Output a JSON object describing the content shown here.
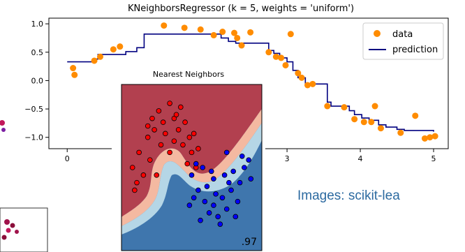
{
  "caption": "Images: scikit-lea",
  "chart_data": [
    {
      "type": "scatter+line",
      "title": "KNeighborsRegressor (k = 5, weights = 'uniform')",
      "xlim": [
        -0.25,
        5.2
      ],
      "ylim": [
        -1.2,
        1.1
      ],
      "xticks": [
        "0",
        "1",
        "2",
        "3",
        "4",
        "5"
      ],
      "yticks": [
        "1.0",
        "0.5",
        "0.0",
        "−0.5",
        "−1.0"
      ],
      "ytick_values": [
        1.0,
        0.5,
        0.0,
        -0.5,
        -1.0
      ],
      "legend": {
        "position": "upper right",
        "entries": [
          "data",
          "prediction"
        ]
      },
      "colors": {
        "data": "#ff8c00",
        "prediction": "#000080"
      },
      "series": [
        {
          "name": "data",
          "kind": "scatter",
          "x": [
            0.08,
            0.1,
            0.37,
            0.45,
            0.63,
            0.72,
            1.32,
            1.6,
            1.82,
            2.0,
            2.12,
            2.28,
            2.32,
            2.38,
            2.5,
            2.75,
            2.85,
            2.92,
            2.98,
            3.05,
            3.15,
            3.2,
            3.28,
            3.35,
            3.55,
            3.78,
            3.92,
            4.05,
            4.15,
            4.2,
            4.28,
            4.55,
            4.75,
            4.88,
            4.95,
            5.02
          ],
          "y": [
            0.22,
            0.1,
            0.35,
            0.42,
            0.55,
            0.6,
            0.97,
            0.93,
            0.9,
            0.8,
            0.86,
            0.84,
            0.75,
            0.62,
            0.85,
            0.5,
            0.42,
            0.4,
            0.27,
            0.82,
            0.13,
            0.05,
            -0.08,
            -0.06,
            -0.45,
            -0.47,
            -0.68,
            -0.73,
            -0.73,
            -0.45,
            -0.84,
            -0.92,
            -0.62,
            -1.02,
            -1.0,
            -0.98
          ]
        },
        {
          "name": "prediction",
          "kind": "step",
          "x": [
            0.0,
            0.35,
            0.42,
            0.8,
            0.95,
            1.05,
            1.55,
            1.85,
            2.1,
            2.2,
            2.3,
            2.75,
            2.82,
            2.9,
            3.0,
            3.08,
            3.15,
            3.25,
            3.55,
            3.6,
            3.85,
            3.92,
            4.02,
            4.12,
            4.25,
            4.35,
            4.5,
            4.6,
            5.0
          ],
          "y": [
            0.33,
            0.38,
            0.46,
            0.51,
            0.58,
            0.82,
            0.82,
            0.82,
            0.75,
            0.69,
            0.66,
            0.53,
            0.48,
            0.4,
            0.33,
            0.18,
            0.05,
            -0.06,
            -0.38,
            -0.45,
            -0.53,
            -0.6,
            -0.66,
            -0.7,
            -0.78,
            -0.82,
            -0.86,
            -0.88,
            -0.9
          ]
        }
      ]
    },
    {
      "type": "scatter",
      "title": "Nearest Neighbors",
      "score_label": ".97",
      "colors": {
        "class_a": "#ff0000",
        "class_b": "#0000ff",
        "region_a": "#b2404f",
        "region_b": "#3f76ad",
        "margin_a": "#f4b9a1",
        "margin_b": "#b5d6e6"
      },
      "series": [
        {
          "name": "class_a",
          "x": [
            -0.95,
            -0.8,
            -0.9,
            -0.6,
            -0.5,
            -0.45,
            -0.35,
            -0.25,
            -0.1,
            0.0,
            0.05,
            0.15,
            -0.3,
            -0.7,
            -0.55,
            -0.2,
            0.1,
            0.25,
            0.35,
            0.4,
            -0.1,
            0.2,
            -0.6,
            0.5,
            0.45,
            -0.85,
            0.0,
            -0.4,
            0.3,
            0.55
          ],
          "y": [
            0.1,
            0.3,
            -0.2,
            0.5,
            0.75,
            0.6,
            0.85,
            0.7,
            0.95,
            0.75,
            0.8,
            0.9,
            0.4,
            0.0,
            0.2,
            0.55,
            0.6,
            0.7,
            0.5,
            0.3,
            0.3,
            0.4,
            0.65,
            0.1,
            0.55,
            -0.1,
            0.45,
            0.0,
            0.15,
            0.35
          ]
        },
        {
          "name": "class_b",
          "x": [
            0.4,
            0.55,
            0.7,
            0.8,
            0.9,
            1.0,
            1.1,
            1.2,
            1.3,
            1.35,
            1.5,
            1.6,
            1.7,
            0.6,
            0.75,
            0.95,
            1.05,
            1.25,
            1.45,
            1.55,
            0.5,
            0.85,
            1.15,
            0.35,
            0.65,
            1.4,
            1.75,
            0.9,
            1.2,
            0.45
          ],
          "y": [
            0.0,
            -0.2,
            -0.35,
            -0.5,
            -0.4,
            -0.55,
            -0.3,
            -0.45,
            -0.2,
            0.05,
            -0.1,
            0.1,
            0.2,
            -0.6,
            -0.15,
            -0.25,
            -0.65,
            -0.1,
            -0.35,
            0.25,
            0.15,
            0.05,
            0.0,
            -0.4,
            0.1,
            -0.55,
            -0.05,
            -0.05,
            0.3,
            -0.3
          ]
        }
      ]
    }
  ],
  "fragments": {
    "left_scatter": "partial figure at left edge"
  }
}
